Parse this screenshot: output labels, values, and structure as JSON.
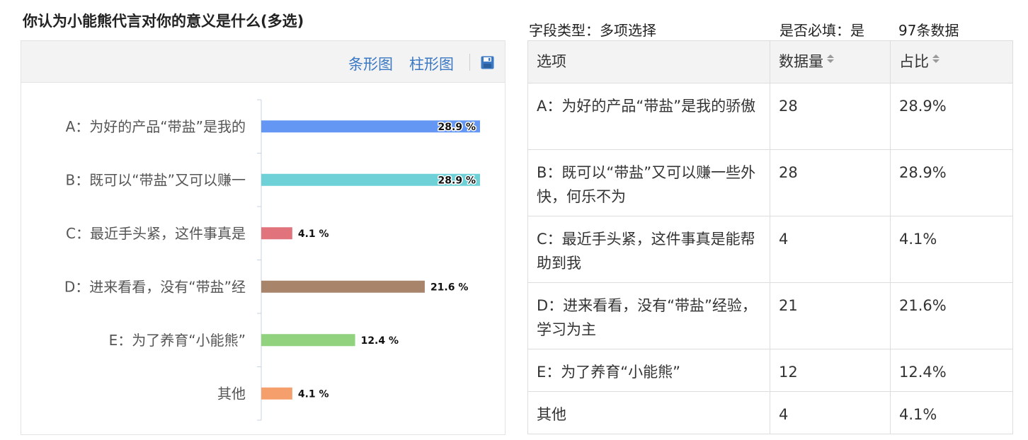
{
  "question": {
    "title": "你认为小能熊代言对你的意义是什么(多选)"
  },
  "toolbar": {
    "bar_chart_label": "条形图",
    "column_chart_label": "柱形图",
    "save_icon": "save-icon"
  },
  "meta": {
    "field_type": "字段类型：多项选择",
    "required": "是否必填：是",
    "count": "97条数据"
  },
  "table": {
    "headers": [
      "选项",
      "数据量",
      "占比"
    ],
    "rows": [
      {
        "option": "A：为好的产品“带盐”是我的骄傲",
        "count": "28",
        "percent": "28.9%"
      },
      {
        "option": "B：既可以“带盐”又可以赚一些外快，何乐不为",
        "count": "28",
        "percent": "28.9%"
      },
      {
        "option": "C：最近手头紧，这件事真是能帮助到我",
        "count": "4",
        "percent": "4.1%"
      },
      {
        "option": "D：进来看看，没有“带盐”经验，学习为主",
        "count": "21",
        "percent": "21.6%"
      },
      {
        "option": "E：为了养育“小能熊”",
        "count": "12",
        "percent": "12.4%"
      },
      {
        "option": "其他",
        "count": "4",
        "percent": "4.1%"
      }
    ]
  },
  "chart_data": {
    "type": "bar",
    "orientation": "horizontal",
    "categories": [
      "A：为好的产品“带盐”是我的",
      "B：既可以“带盐”又可以赚一",
      "C：最近手头紧，这件事真是",
      "D：进来看看，没有“带盐”经",
      "E：为了养育“小能熊”",
      "其他"
    ],
    "values": [
      28.9,
      28.9,
      4.1,
      21.6,
      12.4,
      4.1
    ],
    "value_labels": [
      "28.9 %",
      "28.9 %",
      "4.1 %",
      "21.6 %",
      "12.4 %",
      "4.1 %"
    ],
    "colors": [
      "#6497f4",
      "#6dd1d7",
      "#e0737c",
      "#a8846a",
      "#90d27e",
      "#f5a06c"
    ],
    "xlim": [
      0,
      28.9
    ],
    "grid": false
  }
}
